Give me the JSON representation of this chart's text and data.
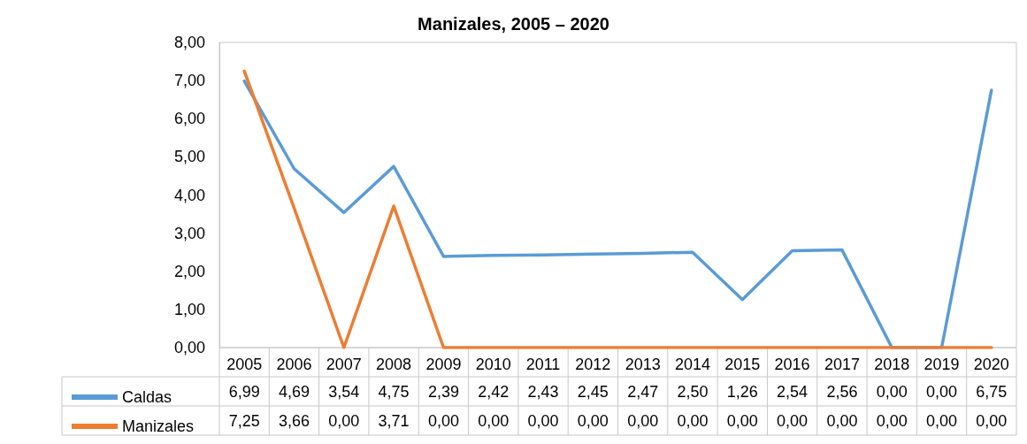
{
  "chart_data": {
    "type": "line",
    "title": "Manizales, 2005 – 2020",
    "categories": [
      "2005",
      "2006",
      "2007",
      "2008",
      "2009",
      "2010",
      "2011",
      "2012",
      "2013",
      "2014",
      "2015",
      "2016",
      "2017",
      "2018",
      "2019",
      "2020"
    ],
    "series": [
      {
        "name": "Caldas",
        "color": "#5b9bd5",
        "values": [
          6.99,
          4.69,
          3.54,
          4.75,
          2.39,
          2.42,
          2.43,
          2.45,
          2.47,
          2.5,
          1.26,
          2.54,
          2.56,
          0,
          0,
          6.75
        ],
        "value_labels": [
          "6,99",
          "4,69",
          "3,54",
          "4,75",
          "2,39",
          "2,42",
          "2,43",
          "2,45",
          "2,47",
          "2,50",
          "1,26",
          "2,54",
          "2,56",
          "0,00",
          "0,00",
          "6,75"
        ]
      },
      {
        "name": "Manizales",
        "color": "#ed7d31",
        "values": [
          7.25,
          3.66,
          0,
          3.71,
          0,
          0,
          0,
          0,
          0,
          0,
          0,
          0,
          0,
          0,
          0,
          0
        ],
        "value_labels": [
          "7,25",
          "3,66",
          "0,00",
          "3,71",
          "0,00",
          "0,00",
          "0,00",
          "0,00",
          "0,00",
          "0,00",
          "0,00",
          "0,00",
          "0,00",
          "0,00",
          "0,00",
          "0,00"
        ]
      }
    ],
    "ylim": [
      0,
      8
    ],
    "yticks": [
      {
        "value": 0,
        "label": "0,00"
      },
      {
        "value": 1,
        "label": "1,00"
      },
      {
        "value": 2,
        "label": "2,00"
      },
      {
        "value": 3,
        "label": "3,00"
      },
      {
        "value": 4,
        "label": "4,00"
      },
      {
        "value": 5,
        "label": "5,00"
      },
      {
        "value": 6,
        "label": "6,00"
      },
      {
        "value": 7,
        "label": "7,00"
      },
      {
        "value": 8,
        "label": "8,00"
      }
    ],
    "grid": false,
    "legend": "bottom",
    "marker": "none",
    "line_style": "solid"
  }
}
